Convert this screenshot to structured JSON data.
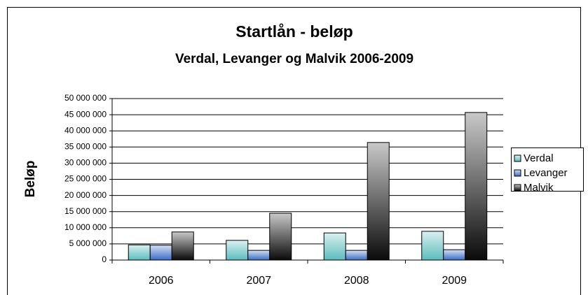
{
  "chart_data": {
    "type": "bar",
    "title": "Startlån - beløp",
    "subtitle": "Verdal, Levanger og Malvik 2006-2009",
    "y_label": "Beløp",
    "categories": [
      "2006",
      "2007",
      "2008",
      "2009"
    ],
    "series": [
      {
        "name": "Verdal",
        "color": "#5cbcbc",
        "values": [
          4700000,
          6100000,
          8400000,
          8900000
        ]
      },
      {
        "name": "Levanger",
        "color": "#3a6cc4",
        "values": [
          4600000,
          3000000,
          3000000,
          3200000
        ]
      },
      {
        "name": "Malvik",
        "color": "#0a0a0a",
        "values": [
          8700000,
          14500000,
          36400000,
          45700000
        ]
      }
    ],
    "ylim": [
      0,
      50000000
    ],
    "yticks": [
      0,
      {
        "value": 5000000,
        "label": "5 000 000"
      },
      {
        "value": 10000000,
        "label": "10 000 000"
      },
      {
        "value": 15000000,
        "label": "15 000 000"
      },
      {
        "value": 20000000,
        "label": "20 000 000"
      },
      {
        "value": 25000000,
        "label": "25 000 000"
      },
      {
        "value": 30000000,
        "label": "30 000 000"
      },
      {
        "value": 35000000,
        "label": "35 000 000"
      },
      {
        "value": 40000000,
        "label": "40 000 000"
      },
      {
        "value": 45000000,
        "label": "45 000 000"
      },
      {
        "value": 50000000,
        "label": "50 000 000"
      }
    ],
    "grid": true,
    "legend": "right"
  }
}
